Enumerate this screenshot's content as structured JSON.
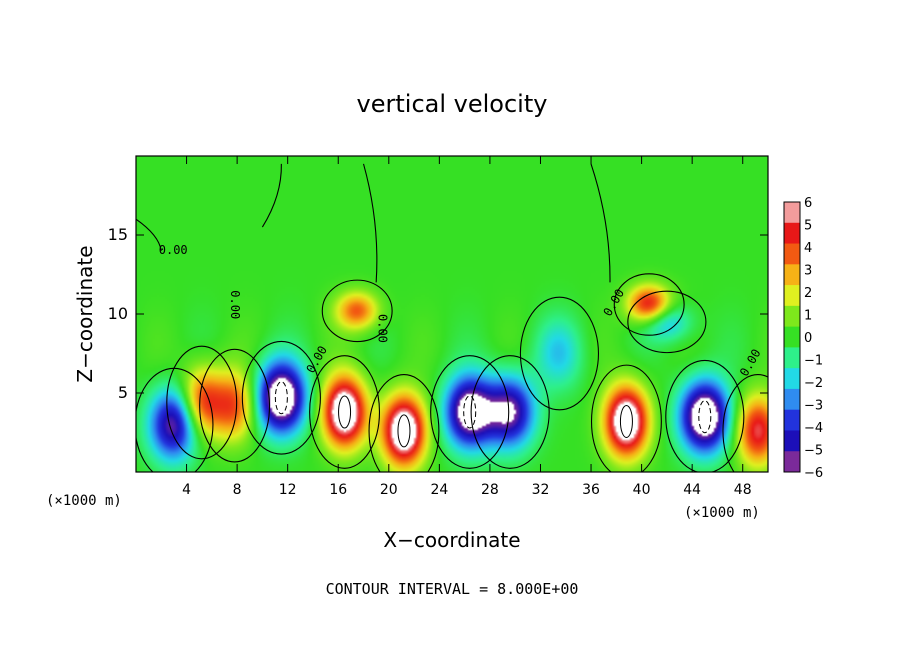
{
  "chart_data": {
    "type": "heatmap",
    "title": "vertical velocity",
    "xlabel": "X−coordinate",
    "ylabel": "Z−coordinate",
    "x_unit": "(×1000 m)",
    "x_unit_repeat": "(×1000 m)",
    "xlim": [
      0,
      50
    ],
    "ylim": [
      0,
      20
    ],
    "x_ticks": [
      4,
      8,
      12,
      16,
      20,
      24,
      28,
      32,
      36,
      40,
      44,
      48
    ],
    "y_ticks": [
      5,
      10,
      15
    ],
    "colorbar": {
      "ticks": [
        6,
        5,
        4,
        3,
        2,
        1,
        0,
        -1,
        -2,
        -3,
        -4,
        -5,
        -6
      ],
      "tick_labels": [
        "6",
        "5",
        "4",
        "3",
        "2",
        "1",
        "0",
        "−1",
        "−2",
        "−3",
        "−4",
        "−5",
        "−6"
      ],
      "range": [
        -6,
        6
      ],
      "colors": [
        "#7b2a9a",
        "#1c0fb8",
        "#2233dd",
        "#2f8cf0",
        "#22d9e6",
        "#2ef08a",
        "#36e024",
        "#7ee81c",
        "#dff020",
        "#f6b216",
        "#f25a12",
        "#e81818",
        "#f39c9c"
      ]
    },
    "contour_label": "0.00",
    "contour_interval_text": "CONTOUR INTERVAL = 8.000E+00",
    "features": [
      {
        "kind": "down",
        "x": 3.0,
        "z": 3.0,
        "amp": -4.5
      },
      {
        "kind": "up",
        "x": 5.2,
        "z": 4.4,
        "amp": 3.5
      },
      {
        "kind": "up",
        "x": 7.8,
        "z": 4.2,
        "amp": 3.0
      },
      {
        "kind": "down",
        "x": 11.5,
        "z": 4.7,
        "amp": -6.0
      },
      {
        "kind": "up",
        "x": 16.5,
        "z": 3.8,
        "amp": 6.0
      },
      {
        "kind": "up",
        "x": 17.5,
        "z": 10.2,
        "amp": 3.0
      },
      {
        "kind": "up",
        "x": 21.2,
        "z": 2.6,
        "amp": 6.0
      },
      {
        "kind": "down",
        "x": 26.4,
        "z": 3.8,
        "amp": -5.5
      },
      {
        "kind": "down",
        "x": 29.6,
        "z": 3.8,
        "amp": -4.5
      },
      {
        "kind": "up",
        "x": 38.8,
        "z": 3.2,
        "amp": 6.0
      },
      {
        "kind": "up",
        "x": 40.6,
        "z": 10.6,
        "amp": 4.0
      },
      {
        "kind": "down",
        "x": 45.0,
        "z": 3.5,
        "amp": -6.0
      },
      {
        "kind": "up",
        "x": 49.2,
        "z": 2.6,
        "amp": 4.0
      },
      {
        "kind": "down",
        "x": 33.5,
        "z": 7.5,
        "amp": -1.5
      },
      {
        "kind": "down",
        "x": 42.0,
        "z": 9.5,
        "amp": -2.0
      }
    ]
  }
}
